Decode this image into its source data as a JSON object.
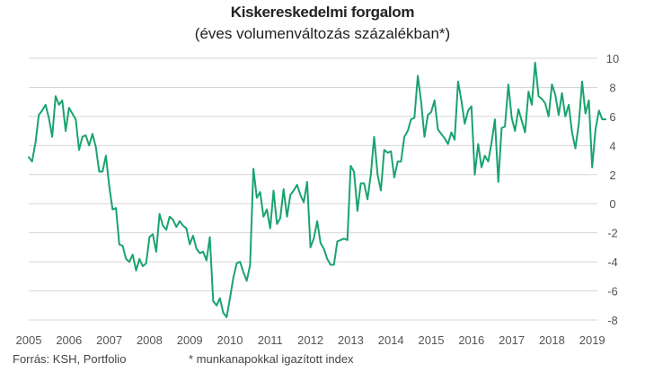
{
  "chart_data": {
    "type": "line",
    "title": "Kiskereskedelmi forgalom",
    "subtitle": "(éves volumenváltozás százalékban*)",
    "xlabel": "",
    "ylabel": "",
    "ylim": [
      -8,
      10
    ],
    "yticks": [
      10,
      8,
      6,
      4,
      2,
      0,
      -2,
      -4,
      -6,
      -8
    ],
    "xticks": [
      "2005",
      "2006",
      "2007",
      "2008",
      "2009",
      "2010",
      "2011",
      "2012",
      "2013",
      "2014",
      "2015",
      "2016",
      "2017",
      "2018",
      "2019"
    ],
    "x_start_year": 2005,
    "grid": true,
    "line_color": "#1aa36f",
    "grid_color": "#d6d6d6",
    "series": [
      {
        "name": "",
        "values": [
          3.2,
          2.9,
          4.2,
          6.1,
          6.4,
          6.8,
          5.9,
          4.6,
          7.4,
          6.8,
          7.1,
          5.0,
          6.6,
          6.2,
          5.8,
          3.7,
          4.6,
          4.7,
          4.0,
          4.8,
          3.9,
          2.2,
          2.2,
          3.3,
          1.2,
          -0.4,
          -0.3,
          -2.8,
          -2.9,
          -3.8,
          -4.0,
          -3.5,
          -4.6,
          -3.8,
          -4.3,
          -4.1,
          -2.3,
          -2.1,
          -3.3,
          -0.7,
          -1.5,
          -1.8,
          -0.9,
          -1.1,
          -1.6,
          -1.2,
          -1.5,
          -1.7,
          -2.8,
          -2.2,
          -3.1,
          -3.4,
          -3.3,
          -3.9,
          -2.3,
          -6.7,
          -7.0,
          -6.5,
          -7.5,
          -7.8,
          -6.5,
          -5.1,
          -4.1,
          -4.0,
          -4.7,
          -5.3,
          -4.2,
          2.4,
          0.4,
          0.8,
          -0.9,
          -0.4,
          -1.7,
          0.9,
          -1.4,
          -1.0,
          1.0,
          -0.9,
          0.6,
          0.9,
          1.3,
          0.6,
          0.1,
          1.5,
          -3.0,
          -2.4,
          -1.2,
          -2.7,
          -3.1,
          -3.8,
          -4.2,
          -4.2,
          -2.6,
          -2.5,
          -2.4,
          -2.5,
          2.6,
          2.2,
          -0.5,
          1.4,
          1.4,
          0.3,
          2.0,
          4.6,
          2.0,
          0.9,
          3.7,
          3.5,
          3.6,
          1.8,
          2.9,
          2.9,
          4.6,
          5.0,
          5.8,
          5.9,
          8.8,
          7.0,
          4.6,
          6.1,
          6.3,
          7.1,
          5.1,
          4.8,
          4.5,
          4.1,
          4.9,
          4.4,
          8.4,
          7.1,
          5.5,
          6.4,
          6.7,
          2.0,
          4.1,
          2.5,
          3.3,
          2.9,
          4.2,
          5.8,
          1.5,
          5.2,
          5.3,
          8.2,
          5.9,
          5.0,
          6.5,
          5.7,
          4.9,
          7.7,
          6.8,
          9.7,
          7.4,
          7.2,
          6.9,
          6.0,
          8.2,
          7.5,
          6.1,
          7.6,
          6.0,
          6.8,
          4.9,
          3.8,
          5.5,
          8.4,
          6.2,
          7.1,
          2.5,
          5.1,
          6.4,
          5.8,
          5.8
        ]
      }
    ]
  },
  "footer": {
    "source": "Forrás: KSH, Portfolio",
    "note": "* munkanapokkal igazított index"
  }
}
